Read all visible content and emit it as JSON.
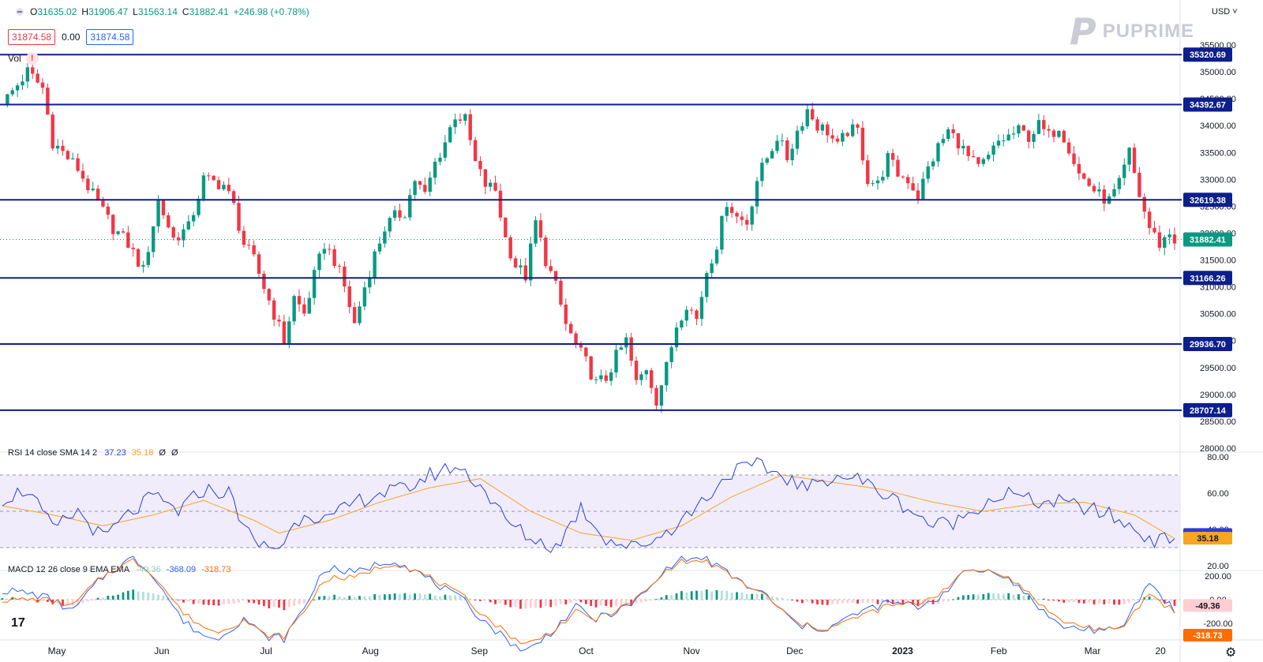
{
  "header": {
    "ohlc": [
      {
        "k": "O",
        "v": "31635.02"
      },
      {
        "k": "H",
        "v": "31906.47"
      },
      {
        "k": "L",
        "v": "31563.14"
      },
      {
        "k": "C",
        "v": "31882.41"
      },
      {
        "k": "",
        "v": "+246.98 (+0.78%)"
      }
    ],
    "price_red": "31874.58",
    "spread": "0.00",
    "price_blue": "31874.58",
    "vol_label": "Vol",
    "vol_warning": "!",
    "currency": "USD ˅"
  },
  "brand": {
    "mark": "P",
    "name": "PUPRIME"
  },
  "footer": {
    "tv_logo": "17",
    "settings_icon": "⚙"
  },
  "colors": {
    "up": "#089981",
    "down": "#f23645",
    "levels": "#0d1f8c",
    "rsi": "#2a3ed8",
    "rsi_sma": "#f5a623",
    "macd": "#2962ff",
    "signal": "#ff6d00"
  },
  "chart_data": [
    {
      "type": "candlestick",
      "title": "",
      "x_labels": [
        "May",
        "Jun",
        "Jul",
        "Aug",
        "Sep",
        "Oct",
        "Nov",
        "Dec",
        "2023",
        "Feb",
        "Mar",
        "20"
      ],
      "ylim": [
        28000,
        35500
      ],
      "y_ticks": [
        "28000.00",
        "28500.00",
        "29000.00",
        "29500.00",
        "30000.00",
        "30500.00",
        "31000.00",
        "31500.00",
        "32000.00",
        "32500.00",
        "33000.00",
        "33500.00",
        "34000.00",
        "34500.00",
        "35000.00",
        "35500.00"
      ],
      "support_resistance": [
        35320.69,
        34392.67,
        32619.38,
        31166.26,
        29936.7,
        28707.14
      ],
      "support_resistance_labels": [
        "35320.69",
        "34392.67",
        "32619.38",
        "31166.26",
        "29936.70",
        "28707.14"
      ],
      "last_price": 31882.41,
      "last_price_label": "31882.41",
      "close_path": [
        [
          0,
          34400
        ],
        [
          5,
          35000
        ],
        [
          8,
          34700
        ],
        [
          10,
          33700
        ],
        [
          15,
          33200
        ],
        [
          18,
          32700
        ],
        [
          22,
          32100
        ],
        [
          25,
          31800
        ],
        [
          28,
          31300
        ],
        [
          31,
          32600
        ],
        [
          34,
          31900
        ],
        [
          37,
          32100
        ],
        [
          40,
          33000
        ],
        [
          44,
          32900
        ],
        [
          46,
          32500
        ],
        [
          48,
          31800
        ],
        [
          50,
          31500
        ],
        [
          52,
          31000
        ],
        [
          54,
          30500
        ],
        [
          56,
          30000
        ],
        [
          58,
          30800
        ],
        [
          60,
          30500
        ],
        [
          62,
          31200
        ],
        [
          64,
          31800
        ],
        [
          66,
          31500
        ],
        [
          68,
          31000
        ],
        [
          70,
          30300
        ],
        [
          72,
          31000
        ],
        [
          74,
          31600
        ],
        [
          76,
          32100
        ],
        [
          78,
          32300
        ],
        [
          80,
          32400
        ],
        [
          82,
          33000
        ],
        [
          84,
          32700
        ],
        [
          86,
          33300
        ],
        [
          88,
          33700
        ],
        [
          90,
          34200
        ],
        [
          92,
          34100
        ],
        [
          94,
          33300
        ],
        [
          96,
          32900
        ],
        [
          98,
          32800
        ],
        [
          100,
          31900
        ],
        [
          102,
          31400
        ],
        [
          104,
          31200
        ],
        [
          106,
          32200
        ],
        [
          108,
          31500
        ],
        [
          110,
          31000
        ],
        [
          112,
          30300
        ],
        [
          114,
          29900
        ],
        [
          116,
          29600
        ],
        [
          118,
          29200
        ],
        [
          120,
          29300
        ],
        [
          122,
          29700
        ],
        [
          124,
          30000
        ],
        [
          126,
          29200
        ],
        [
          128,
          29500
        ],
        [
          130,
          28900
        ],
        [
          132,
          29500
        ],
        [
          134,
          30300
        ],
        [
          136,
          30700
        ],
        [
          138,
          30400
        ],
        [
          140,
          31300
        ],
        [
          142,
          31800
        ],
        [
          144,
          32600
        ],
        [
          146,
          32300
        ],
        [
          148,
          32200
        ],
        [
          150,
          33000
        ],
        [
          152,
          33400
        ],
        [
          154,
          33800
        ],
        [
          156,
          33400
        ],
        [
          158,
          33900
        ],
        [
          160,
          34300
        ],
        [
          162,
          34000
        ],
        [
          164,
          33900
        ],
        [
          166,
          33600
        ],
        [
          168,
          33900
        ],
        [
          170,
          33900
        ],
        [
          172,
          33000
        ],
        [
          174,
          32900
        ],
        [
          176,
          33400
        ],
        [
          178,
          33100
        ],
        [
          180,
          33000
        ],
        [
          182,
          32700
        ],
        [
          184,
          33200
        ],
        [
          186,
          33600
        ],
        [
          188,
          33900
        ],
        [
          190,
          33700
        ],
        [
          192,
          33400
        ],
        [
          194,
          33200
        ],
        [
          196,
          33400
        ],
        [
          198,
          33700
        ],
        [
          200,
          33800
        ],
        [
          202,
          33900
        ],
        [
          204,
          33800
        ],
        [
          206,
          34000
        ],
        [
          208,
          33800
        ],
        [
          210,
          34000
        ],
        [
          212,
          33600
        ],
        [
          214,
          33100
        ],
        [
          216,
          32900
        ],
        [
          218,
          32700
        ],
        [
          220,
          32600
        ],
        [
          222,
          32900
        ],
        [
          224,
          33500
        ],
        [
          226,
          32700
        ],
        [
          228,
          32100
        ],
        [
          230,
          31800
        ],
        [
          232,
          32000
        ],
        [
          233,
          31882
        ]
      ]
    },
    {
      "type": "line",
      "title": "RSI 14 close SMA 14 2",
      "series": [
        {
          "name": "RSI",
          "last": 37.23
        },
        {
          "name": "SMA",
          "last": 35.18
        }
      ],
      "header_values": [
        "37.23",
        "35.18",
        "Ø",
        "Ø"
      ],
      "series_labels": [
        "37.23",
        "35.18"
      ],
      "ylim": [
        20,
        80
      ],
      "y_ticks": [
        "20.00",
        "40.00",
        "60.00",
        "80.00"
      ],
      "band": [
        30,
        70
      ],
      "rsi_path": [
        [
          0,
          57
        ],
        [
          5,
          62
        ],
        [
          10,
          40
        ],
        [
          15,
          50
        ],
        [
          20,
          35
        ],
        [
          25,
          48
        ],
        [
          30,
          58
        ],
        [
          35,
          50
        ],
        [
          40,
          62
        ],
        [
          45,
          60
        ],
        [
          50,
          32
        ],
        [
          55,
          30
        ],
        [
          60,
          50
        ],
        [
          65,
          45
        ],
        [
          70,
          55
        ],
        [
          75,
          60
        ],
        [
          80,
          62
        ],
        [
          85,
          70
        ],
        [
          90,
          75
        ],
        [
          95,
          65
        ],
        [
          100,
          45
        ],
        [
          105,
          35
        ],
        [
          110,
          30
        ],
        [
          115,
          52
        ],
        [
          120,
          35
        ],
        [
          125,
          30
        ],
        [
          130,
          35
        ],
        [
          135,
          45
        ],
        [
          140,
          58
        ],
        [
          145,
          72
        ],
        [
          150,
          75
        ],
        [
          155,
          70
        ],
        [
          160,
          62
        ],
        [
          165,
          70
        ],
        [
          170,
          68
        ],
        [
          175,
          60
        ],
        [
          180,
          52
        ],
        [
          185,
          42
        ],
        [
          190,
          45
        ],
        [
          195,
          55
        ],
        [
          200,
          60
        ],
        [
          205,
          55
        ],
        [
          210,
          55
        ],
        [
          215,
          52
        ],
        [
          220,
          48
        ],
        [
          225,
          40
        ],
        [
          230,
          33
        ],
        [
          233,
          37
        ]
      ],
      "sma_path": [
        [
          0,
          53
        ],
        [
          10,
          48
        ],
        [
          20,
          42
        ],
        [
          30,
          48
        ],
        [
          40,
          56
        ],
        [
          50,
          45
        ],
        [
          55,
          38
        ],
        [
          65,
          45
        ],
        [
          75,
          55
        ],
        [
          85,
          63
        ],
        [
          95,
          68
        ],
        [
          105,
          50
        ],
        [
          115,
          38
        ],
        [
          125,
          34
        ],
        [
          135,
          42
        ],
        [
          145,
          58
        ],
        [
          155,
          70
        ],
        [
          165,
          66
        ],
        [
          175,
          62
        ],
        [
          185,
          55
        ],
        [
          195,
          50
        ],
        [
          205,
          54
        ],
        [
          215,
          55
        ],
        [
          225,
          48
        ],
        [
          233,
          35
        ]
      ]
    },
    {
      "type": "bar+line",
      "title": "MACD 12 26 close 9 EMA EMA",
      "series": [
        {
          "name": "Histogram",
          "last": -49.36
        },
        {
          "name": "MACD",
          "last": -368.09
        },
        {
          "name": "Signal",
          "last": -318.73
        }
      ],
      "header_values": [
        "-49.36",
        "-368.09",
        "-318.73"
      ],
      "series_labels": [
        "-49.36",
        "-318.73"
      ],
      "ylim": [
        -300,
        200
      ],
      "y_ticks": [
        "200.00",
        "0.00",
        "-200.00"
      ],
      "hist_path": [
        [
          0,
          20
        ],
        [
          8,
          -20
        ],
        [
          14,
          -60
        ],
        [
          20,
          20
        ],
        [
          26,
          80
        ],
        [
          30,
          60
        ],
        [
          36,
          -20
        ],
        [
          42,
          -50
        ],
        [
          48,
          -10
        ],
        [
          52,
          -60
        ],
        [
          56,
          -80
        ],
        [
          60,
          -30
        ],
        [
          64,
          40
        ],
        [
          70,
          20
        ],
        [
          78,
          60
        ],
        [
          86,
          40
        ],
        [
          92,
          20
        ],
        [
          98,
          -30
        ],
        [
          104,
          -80
        ],
        [
          108,
          -60
        ],
        [
          114,
          -20
        ],
        [
          118,
          -60
        ],
        [
          124,
          -50
        ],
        [
          128,
          -20
        ],
        [
          134,
          60
        ],
        [
          140,
          80
        ],
        [
          146,
          60
        ],
        [
          152,
          40
        ],
        [
          158,
          -20
        ],
        [
          164,
          -40
        ],
        [
          170,
          -30
        ],
        [
          176,
          -30
        ],
        [
          182,
          -50
        ],
        [
          186,
          -30
        ],
        [
          192,
          40
        ],
        [
          198,
          60
        ],
        [
          204,
          30
        ],
        [
          210,
          -20
        ],
        [
          216,
          -30
        ],
        [
          222,
          -50
        ],
        [
          228,
          30
        ],
        [
          233,
          -49
        ]
      ]
    }
  ]
}
